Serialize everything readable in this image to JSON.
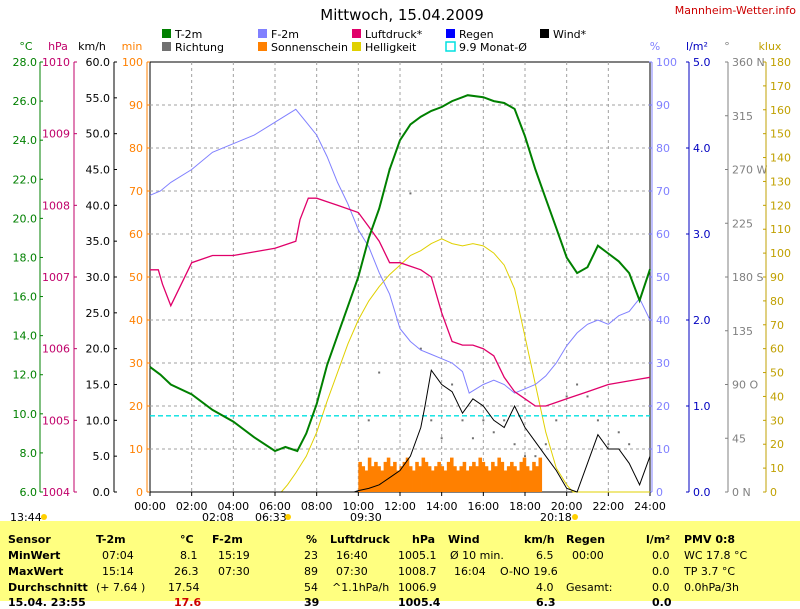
{
  "header": {
    "title": "Mittwoch, 15.04.2009",
    "site": "Mannheim-Wetter.info"
  },
  "colors": {
    "temp": "#008000",
    "dir": "#707070",
    "dew": "#8080ff",
    "sun": "#ff8000",
    "pres": "#e0006a",
    "bright": "#e0d000",
    "rain": "#0000ff",
    "avg": "#00e0e0",
    "wind": "#000000",
    "tempAxis": "#008000",
    "presAxis": "#c0006a",
    "minAxis": "#ff8000",
    "humAxis": "#8080ff",
    "rainAxis": "#0000c0",
    "dirAxis": "#808080",
    "kluxAxis": "#c0a000"
  },
  "chart_data": {
    "type": "line",
    "title": "Mittwoch, 15.04.2009",
    "x_ticks": [
      "00:00",
      "02:00",
      "04:00",
      "06:00",
      "08:00",
      "10:00",
      "12:00",
      "14:00",
      "16:00",
      "18:00",
      "20:00",
      "22:00",
      "24:00"
    ],
    "axes": {
      "temp": {
        "unit": "°C",
        "min": 6,
        "max": 28,
        "ticks": [
          "28.0",
          "26.0",
          "24.0",
          "22.0",
          "20.0",
          "18.0",
          "16.0",
          "14.0",
          "12.0",
          "10.0",
          "8.0",
          "6.0"
        ]
      },
      "pres": {
        "unit": "hPa",
        "min": 1004,
        "max": 1010,
        "ticks": [
          "1010",
          "1009",
          "1008",
          "1007",
          "1006",
          "1005",
          "1004"
        ]
      },
      "wind": {
        "unit": "km/h",
        "min": 0,
        "max": 60,
        "ticks": [
          "60.0",
          "55.0",
          "50.0",
          "45.0",
          "40.0",
          "35.0",
          "30.0",
          "25.0",
          "20.0",
          "15.0",
          "10.0",
          "5.0",
          "0.0"
        ]
      },
      "sun": {
        "unit": "min",
        "min": 0,
        "max": 100,
        "ticks": [
          "100",
          "90",
          "80",
          "70",
          "60",
          "50",
          "40",
          "30",
          "20",
          "10",
          "0"
        ]
      },
      "hum": {
        "unit": "%",
        "min": 0,
        "max": 100,
        "ticks": [
          "100",
          "90",
          "80",
          "70",
          "60",
          "50",
          "40",
          "30",
          "20",
          "10",
          "0"
        ]
      },
      "rain": {
        "unit": "l/m²",
        "min": 0,
        "max": 5,
        "ticks": [
          "5.0",
          "4.0",
          "3.0",
          "2.0",
          "1.0",
          "0.0"
        ]
      },
      "dir": {
        "unit": "°",
        "ticks": [
          "360 N",
          "315",
          "270 W",
          "225",
          "180 S",
          "135",
          "90 O",
          "45",
          "0 N"
        ]
      },
      "klux": {
        "unit": "klux",
        "min": 0,
        "max": 180,
        "ticks": [
          "180",
          "170",
          "160",
          "150",
          "140",
          "130",
          "120",
          "110",
          "100",
          "90",
          "80",
          "70",
          "60",
          "50",
          "40",
          "30",
          "20",
          "10",
          "0"
        ]
      }
    },
    "legend": [
      {
        "label": "T-2m",
        "color": "#008000"
      },
      {
        "label": "Richtung",
        "color": "#707070"
      },
      {
        "label": "F-2m",
        "color": "#8080ff"
      },
      {
        "label": "Sonnenschein",
        "color": "#ff8000"
      },
      {
        "label": "Luftdruck*",
        "color": "#e0006a"
      },
      {
        "label": "Helligkeit",
        "color": "#e0d000"
      },
      {
        "label": "Regen",
        "color": "#0000ff"
      },
      {
        "label": "9.9 Monat-Ø",
        "color": "#00e0e0"
      },
      {
        "label": "Wind*",
        "color": "#000000"
      }
    ],
    "series": [
      {
        "name": "T-2m",
        "axis": "temp",
        "x": [
          0,
          0.5,
          1,
          2,
          3,
          4,
          5,
          6,
          6.5,
          7.07,
          7.5,
          8,
          8.5,
          9,
          9.5,
          10,
          10.5,
          11,
          11.5,
          12,
          12.5,
          13,
          13.5,
          14,
          14.5,
          15,
          15.25,
          16,
          16.5,
          17,
          17.5,
          18,
          18.5,
          19,
          19.5,
          20,
          20.5,
          21,
          21.5,
          22,
          22.5,
          23,
          23.5,
          24
        ],
        "y": [
          12.4,
          12.0,
          11.5,
          11.0,
          10.2,
          9.6,
          8.8,
          8.1,
          8.3,
          8.1,
          9.0,
          10.5,
          12.5,
          14.0,
          15.5,
          17.0,
          19.0,
          20.5,
          22.5,
          24.0,
          24.8,
          25.2,
          25.5,
          25.7,
          26.0,
          26.2,
          26.3,
          26.2,
          26.0,
          25.9,
          25.6,
          24.2,
          22.5,
          21.0,
          19.5,
          18.0,
          17.2,
          17.5,
          18.6,
          18.2,
          17.8,
          17.2,
          15.8,
          17.4
        ]
      },
      {
        "name": "F-2m",
        "axis": "hum",
        "x": [
          0,
          0.5,
          1,
          2,
          3,
          4,
          5,
          6,
          7,
          7.5,
          8,
          8.5,
          9,
          9.5,
          10,
          10.5,
          11,
          11.5,
          12,
          12.5,
          13,
          13.5,
          14,
          14.5,
          15,
          15.32,
          16,
          16.5,
          17,
          17.5,
          18,
          18.5,
          19,
          19.5,
          20,
          20.5,
          21,
          21.5,
          22,
          22.5,
          23,
          23.5,
          24
        ],
        "y": [
          69,
          70,
          72,
          75,
          79,
          81,
          83,
          86,
          89,
          86,
          83,
          78,
          72,
          67,
          61,
          57,
          51,
          46,
          38,
          35,
          33,
          32,
          31,
          30,
          28,
          23,
          25,
          26,
          25,
          23,
          24,
          25,
          27,
          30,
          34,
          37,
          39,
          40,
          39,
          41,
          42,
          45,
          40
        ]
      },
      {
        "name": "Luftdruck*",
        "axis": "pres",
        "x": [
          0,
          0.4,
          0.6,
          1,
          2,
          3,
          4,
          5,
          6,
          7,
          7.2,
          7.6,
          8,
          8.5,
          9,
          10,
          10.5,
          11,
          11.5,
          12,
          12.5,
          13,
          13.5,
          14,
          14.5,
          15,
          15.5,
          16,
          16.5,
          17,
          17.5,
          18,
          18.5,
          19,
          19.5,
          20,
          21,
          22,
          23,
          24
        ],
        "y": [
          1007.1,
          1007.1,
          1006.9,
          1006.6,
          1007.2,
          1007.3,
          1007.3,
          1007.35,
          1007.4,
          1007.5,
          1007.8,
          1008.1,
          1008.1,
          1008.05,
          1008.0,
          1007.9,
          1007.7,
          1007.5,
          1007.2,
          1007.2,
          1007.15,
          1007.1,
          1007.0,
          1006.5,
          1006.1,
          1006.05,
          1006.05,
          1006.0,
          1005.9,
          1005.6,
          1005.4,
          1005.3,
          1005.2,
          1005.2,
          1005.25,
          1005.3,
          1005.4,
          1005.5,
          1005.55,
          1005.6
        ]
      },
      {
        "name": "Helligkeit",
        "axis": "klux",
        "x": [
          0,
          6.3,
          6.6,
          7,
          7.5,
          8,
          8.5,
          9,
          9.5,
          10,
          10.5,
          11,
          11.5,
          12,
          12.5,
          13,
          13.5,
          14,
          14.5,
          15,
          15.5,
          16,
          16.5,
          17,
          17.5,
          18,
          18.5,
          19,
          19.5,
          20,
          20.3,
          24
        ],
        "y": [
          0,
          0,
          3,
          8,
          15,
          25,
          38,
          50,
          62,
          72,
          80,
          86,
          91,
          95,
          99,
          101,
          104,
          106,
          104,
          103,
          104,
          103,
          100,
          95,
          85,
          65,
          45,
          25,
          10,
          3,
          0,
          0
        ]
      },
      {
        "name": "Wind*",
        "axis": "wind",
        "x": [
          0,
          9.8,
          10,
          10.5,
          11,
          11.5,
          12,
          12.5,
          13,
          13.2,
          13.5,
          14,
          14.5,
          15,
          15.5,
          16,
          16.5,
          17,
          17.5,
          18,
          18.5,
          19,
          19.5,
          20,
          20.5,
          21,
          21.5,
          22,
          22.5,
          23,
          23.5,
          24
        ],
        "y": [
          0,
          0,
          0.2,
          0.5,
          1,
          2,
          3,
          5,
          9,
          12,
          17,
          15,
          14,
          11,
          13,
          12,
          10,
          9,
          12,
          9,
          7,
          5,
          3,
          0.5,
          0,
          4,
          8,
          6,
          6,
          4,
          1,
          5
        ]
      },
      {
        "name": "9.9 Monat-Ø",
        "axis": "temp",
        "x": [
          0,
          24
        ],
        "y": [
          9.9,
          9.9
        ]
      }
    ],
    "sunshine_minutes": {
      "axis": "sun",
      "from": 10.0,
      "to": 18.8,
      "values": [
        7,
        6,
        5,
        8,
        6,
        7,
        6,
        5,
        7,
        8,
        6,
        7,
        5,
        6,
        7,
        8,
        6,
        5,
        7,
        6,
        8,
        7,
        6,
        5,
        6,
        7,
        6,
        5,
        7,
        8,
        6,
        5,
        6,
        7,
        5,
        6,
        7,
        6,
        8,
        7,
        6,
        5,
        7,
        6,
        8,
        7,
        5,
        6,
        7,
        6,
        5,
        7,
        8,
        6,
        5,
        7,
        6,
        8
      ]
    },
    "wind_direction": {
      "axis": "dir",
      "x": [
        10.5,
        11,
        11.5,
        12,
        12.5,
        13,
        13.5,
        14,
        14.5,
        15,
        15.5,
        16,
        16.5,
        17,
        17.5,
        18,
        18.5,
        19,
        19.5,
        20,
        20.5,
        21,
        21.5,
        22,
        22.5,
        23
      ],
      "y": [
        60,
        100,
        270,
        300,
        250,
        120,
        60,
        45,
        90,
        60,
        45,
        60,
        50,
        60,
        40,
        30,
        30,
        40,
        60,
        80,
        90,
        80,
        60,
        40,
        50,
        40
      ]
    },
    "markers": {
      "left": "13:44",
      "sunrise": "06:33",
      "sunset": "20:18",
      "marks": [
        "02:08",
        "09:30"
      ]
    }
  },
  "stats": {
    "sensor": {
      "label": "Sensor",
      "rows": [
        "MinWert",
        "MaxWert",
        "Durchschnitt"
      ],
      "current": "15.04. 23:55"
    },
    "temp": {
      "head": "T-2m",
      "unit": "°C",
      "cols": [
        [
          "07:04",
          "8.1"
        ],
        [
          "15:14",
          "26.3"
        ],
        [
          "(+ 7.64 )",
          "17.54"
        ]
      ],
      "current": "17.6"
    },
    "hum": {
      "head": "F-2m",
      "unit": "%",
      "cols": [
        [
          "15:19",
          "23"
        ],
        [
          "07:30",
          "89"
        ],
        [
          "",
          "54"
        ]
      ],
      "current": "39"
    },
    "pres": {
      "head": "Luftdruck",
      "unit": "hPa",
      "cols": [
        [
          "16:40",
          "1005.1"
        ],
        [
          "07:30",
          "1008.7"
        ],
        [
          "^1.1hPa/h",
          "1006.9"
        ]
      ],
      "current": "1005.4"
    },
    "wind": {
      "head": "Wind",
      "unit": "km/h",
      "cols": [
        [
          "Ø 10 min.",
          "6.5"
        ],
        [
          "16:04",
          "O-NO 19.6"
        ],
        [
          "",
          "4.0"
        ]
      ],
      "current": "6.3"
    },
    "rain": {
      "head": "Regen",
      "unit": "l/m²",
      "cols": [
        [
          "00:00",
          "0.0"
        ],
        [
          "",
          "0.0"
        ],
        [
          "Gesamt:",
          "0.0"
        ]
      ],
      "current": "0.0"
    },
    "pmv": {
      "head": "PMV 0:8",
      "lines": [
        "WC 17.8 °C",
        "TP 3.7 °C",
        "0.0hPa/3h"
      ]
    }
  }
}
